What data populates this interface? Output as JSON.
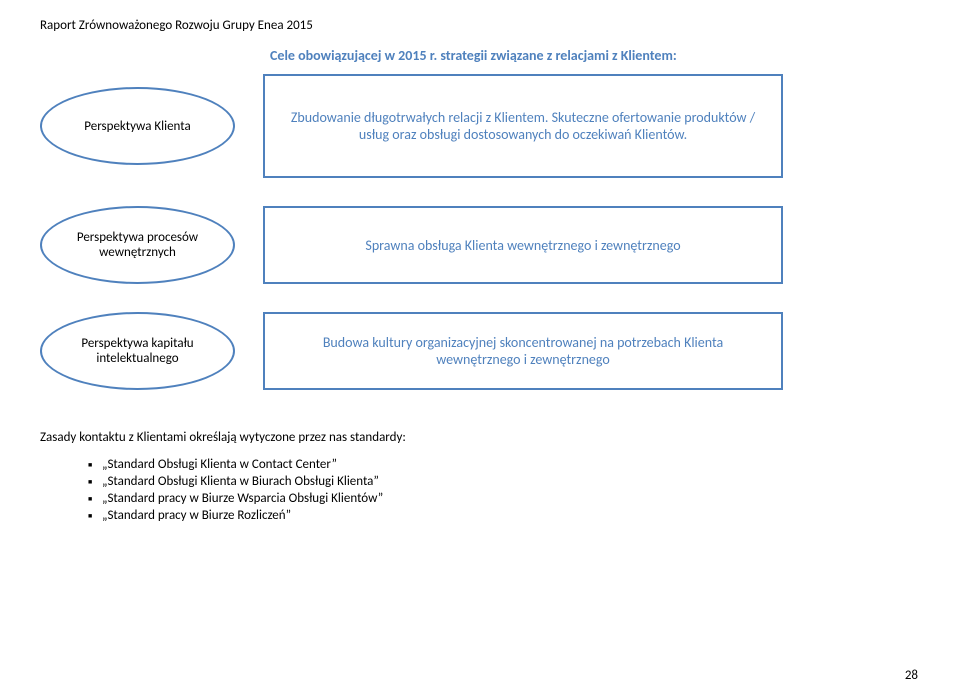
{
  "header": "Raport Zrównoważonego Rozwoju  Grupy Enea 2015",
  "title": "Cele obowiązującej w 2015 r. strategii związane z relacjami z Klientem:",
  "rows": [
    {
      "ellipse": "Perspektywa Klienta",
      "rect": "Zbudowanie długotrwałych relacji z Klientem. Skuteczne ofertowanie produktów / usług oraz obsługi dostosowanych do oczekiwań Klientów."
    },
    {
      "ellipse": "Perspektywa procesów wewnętrznych",
      "rect": "Sprawna obsługa Klienta wewnętrznego i zewnętrznego"
    },
    {
      "ellipse": "Perspektywa kapitału intelektualnego",
      "rect": "Budowa kultury organizacyjnej skoncentrowanej na potrzebach Klienta wewnętrznego i zewnętrznego"
    }
  ],
  "standards_intro": "Zasady kontaktu z Klientami określają wytyczone przez nas standardy:",
  "standards": [
    "„Standard Obsługi Klienta w Contact Center”",
    "„Standard Obsługi Klienta w Biurach Obsługi Klienta”",
    "„Standard pracy w Biurze Wsparcia Obsługi Klientów”",
    "„Standard pracy w Biurze Rozliczeń”"
  ],
  "page_number": "28",
  "colors": {
    "border": "#4f81bd",
    "title_text": "#4f81bd",
    "body_text": "#000000",
    "background": "#ffffff"
  },
  "typography": {
    "font_family": "Calibri",
    "header_size_pt": 10,
    "title_size_pt": 11,
    "body_size_pt": 10
  }
}
